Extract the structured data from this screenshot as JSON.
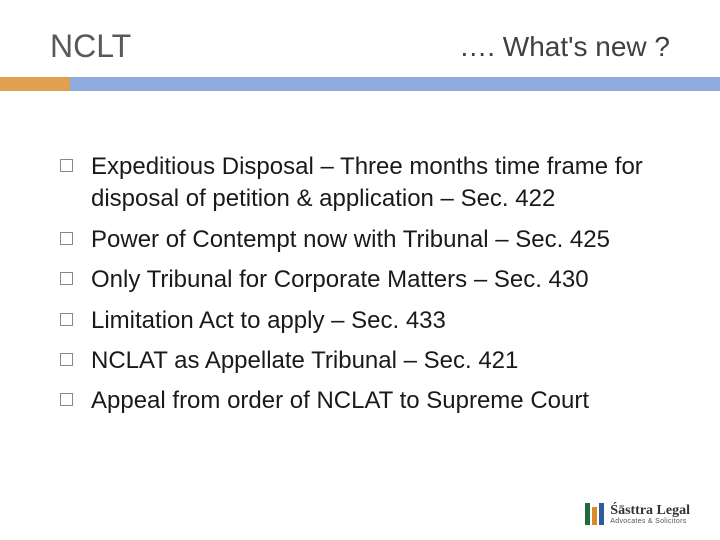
{
  "header": {
    "title_left": "NCLT",
    "title_right": "…. What's new ?"
  },
  "divider": {
    "orange_color": "#e0a050",
    "blue_color": "#8faadc",
    "orange_width": 70,
    "height": 14
  },
  "bullets": [
    "Expeditious Disposal – Three months time frame for disposal of petition & application – Sec. 422",
    "Power of Contempt now with Tribunal – Sec. 425",
    "Only Tribunal for Corporate Matters – Sec. 430",
    "Limitation Act to apply – Sec. 433",
    "NCLAT as Appellate Tribunal – Sec. 421",
    "Appeal from order of NCLAT to Supreme Court"
  ],
  "footer": {
    "logo_main": "Śāsttra Legal",
    "logo_sub": "Advocates & Solicitors",
    "bar_colors": [
      "#1f6b3a",
      "#d98c2b",
      "#2e5aa0"
    ],
    "bar_heights": [
      22,
      18,
      22
    ]
  },
  "styles": {
    "body_bg": "#ffffff",
    "title_left_color": "#595959",
    "title_left_size": 32,
    "title_right_color": "#404040",
    "title_right_size": 28,
    "bullet_text_color": "#1a1a1a",
    "bullet_text_size": 24,
    "checkbox_border": "#888888"
  }
}
